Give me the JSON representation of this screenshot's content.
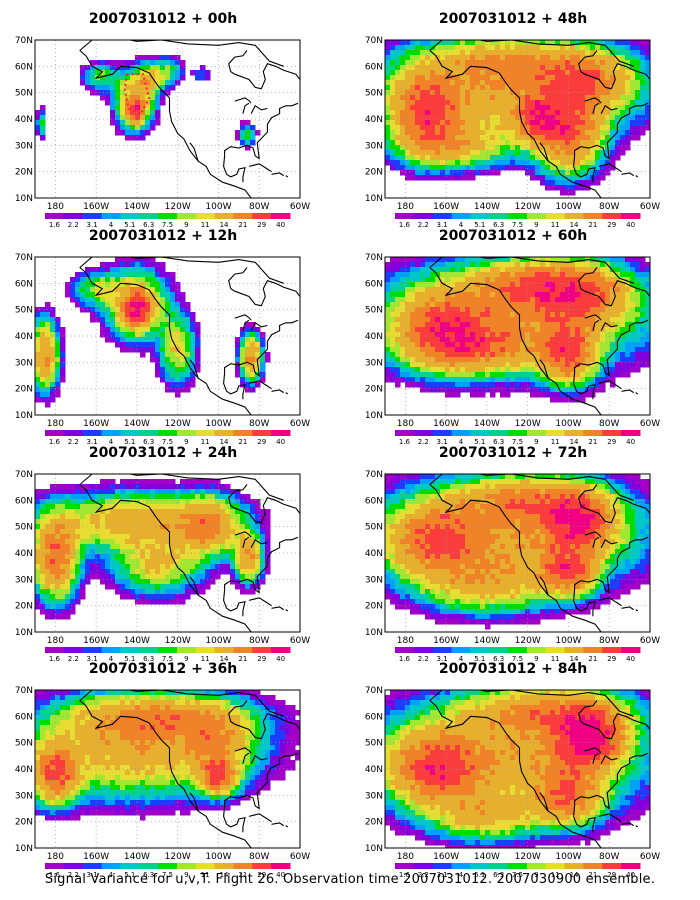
{
  "panels": [
    {
      "title": "2007031012 + 00h",
      "lead": "00h",
      "blobs": [
        [
          -141,
          47,
          9,
          10,
          3
        ],
        [
          -141,
          43,
          4,
          4,
          5
        ],
        [
          -134,
          55,
          6,
          5,
          2
        ],
        [
          -158,
          56,
          8,
          5,
          1
        ],
        [
          -125,
          58,
          7,
          5,
          1
        ],
        [
          -108,
          57,
          4,
          3,
          0
        ],
        [
          -86,
          34,
          4,
          4,
          1
        ],
        [
          -187,
          38,
          2,
          5,
          1
        ]
      ]
    },
    {
      "title": "2007031012 + 48h",
      "lead": "48h",
      "blobs": [
        [
          -130,
          50,
          55,
          16,
          3
        ],
        [
          -170,
          42,
          15,
          14,
          5
        ],
        [
          -100,
          35,
          15,
          14,
          5
        ],
        [
          -155,
          30,
          25,
          8,
          2
        ],
        [
          -90,
          55,
          20,
          10,
          3
        ],
        [
          -130,
          62,
          40,
          8,
          2
        ],
        [
          -115,
          40,
          10,
          8,
          4
        ]
      ]
    },
    {
      "title": "2007031012 + 12h",
      "lead": "12h",
      "blobs": [
        [
          -140,
          52,
          14,
          12,
          3
        ],
        [
          -140,
          50,
          6,
          6,
          6
        ],
        [
          -185,
          33,
          6,
          12,
          4
        ],
        [
          -120,
          35,
          8,
          12,
          2
        ],
        [
          -84,
          32,
          5,
          8,
          4
        ],
        [
          -160,
          58,
          12,
          6,
          1
        ]
      ]
    },
    {
      "title": "2007031012 + 60h",
      "lead": "60h",
      "blobs": [
        [
          -130,
          47,
          60,
          18,
          3
        ],
        [
          -160,
          42,
          20,
          12,
          5
        ],
        [
          -100,
          33,
          12,
          10,
          5
        ],
        [
          -95,
          55,
          22,
          10,
          4
        ],
        [
          -140,
          35,
          30,
          8,
          2
        ],
        [
          -115,
          60,
          30,
          8,
          3
        ]
      ]
    },
    {
      "title": "2007031012 + 24h",
      "lead": "24h",
      "blobs": [
        [
          -140,
          52,
          40,
          10,
          3
        ],
        [
          -180,
          38,
          10,
          14,
          5
        ],
        [
          -105,
          50,
          15,
          10,
          3
        ],
        [
          -85,
          38,
          6,
          8,
          4
        ],
        [
          -130,
          35,
          20,
          10,
          2
        ]
      ]
    },
    {
      "title": "2007031012 + 72h",
      "lead": "72h",
      "blobs": [
        [
          -130,
          47,
          60,
          18,
          3
        ],
        [
          -95,
          52,
          15,
          10,
          6
        ],
        [
          -100,
          33,
          12,
          8,
          5
        ],
        [
          -165,
          45,
          20,
          12,
          4
        ],
        [
          -140,
          28,
          30,
          10,
          2
        ],
        [
          -120,
          60,
          30,
          8,
          3
        ]
      ]
    },
    {
      "title": "2007031012 + 36h",
      "lead": "36h",
      "blobs": [
        [
          -140,
          47,
          50,
          16,
          3
        ],
        [
          -180,
          38,
          10,
          10,
          5
        ],
        [
          -100,
          37,
          8,
          6,
          5
        ],
        [
          -130,
          60,
          40,
          8,
          3
        ],
        [
          -100,
          50,
          15,
          10,
          2
        ]
      ]
    },
    {
      "title": "2007031012 + 84h",
      "lead": "84h",
      "blobs": [
        [
          -130,
          45,
          60,
          20,
          3
        ],
        [
          -90,
          52,
          15,
          10,
          8
        ],
        [
          -100,
          30,
          15,
          10,
          4
        ],
        [
          -165,
          40,
          20,
          12,
          5
        ],
        [
          -140,
          22,
          25,
          8,
          2
        ],
        [
          -110,
          62,
          35,
          8,
          3
        ]
      ]
    }
  ],
  "x_axis": {
    "tick_labels": [
      "180",
      "160W",
      "140W",
      "120W",
      "100W",
      "80W",
      "60W"
    ],
    "tick_lons": [
      -180,
      -160,
      -140,
      -120,
      -100,
      -80,
      -60
    ],
    "range": [
      -190,
      -60
    ]
  },
  "y_axis": {
    "tick_labels": [
      "10N",
      "20N",
      "30N",
      "40N",
      "50N",
      "60N",
      "70N"
    ],
    "tick_lats": [
      10,
      20,
      30,
      40,
      50,
      60,
      70
    ],
    "range": [
      10,
      70
    ]
  },
  "colorbar": {
    "labels": [
      "1.6",
      "2.2",
      "3.1",
      "4",
      "5.1",
      "6.3",
      "7.5",
      "9",
      "11",
      "14",
      "21",
      "29",
      "40"
    ],
    "colors": [
      "#a000c8",
      "#8200dc",
      "#1e3cff",
      "#00a0ff",
      "#00c8c8",
      "#00d28c",
      "#00dc00",
      "#a0e632",
      "#e6dc32",
      "#e6af2d",
      "#f08228",
      "#fa3c3c",
      "#f00082"
    ]
  },
  "caption": "Signal Variance for u,v,T. Flight 26. Observation time 2007031012. 2007030900 ensemble.",
  "grid": "dotted"
}
